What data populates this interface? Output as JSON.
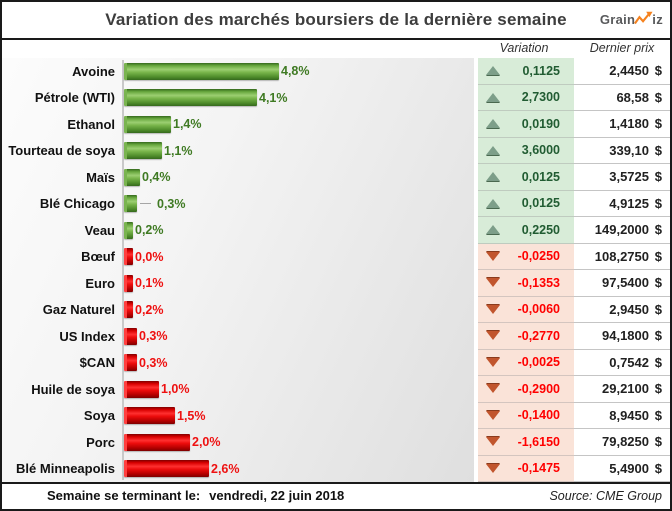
{
  "title": "Variation des marchés boursiers de la dernière semaine",
  "logo": {
    "part1": "Grain",
    "part2": "iz",
    "zigzag_color": "#f5821f",
    "text_color": "#58595b"
  },
  "columns": {
    "variation": "Variation",
    "dernier_prix": "Dernier prix",
    "currency": "$"
  },
  "footer": {
    "week_label": "Semaine se terminant le:",
    "week_date": "vendredi, 22 juin 2018",
    "source": "Source: CME Group"
  },
  "colors": {
    "positive_bar": "#5a9e35",
    "negative_bar": "#e00000",
    "positive_text": "#3f7a23",
    "negative_text": "#ee1111",
    "positive_cell_bg": "#d8ecd8",
    "negative_cell_bg": "#fae3d8",
    "up_icon": "#7d9e89",
    "down_icon": "#c1552d",
    "accent_orange": "#f5821f"
  },
  "chart_data": {
    "type": "bar",
    "orientation": "horizontal",
    "title": "Variation des marchés boursiers de la dernière semaine",
    "xlabel": "",
    "ylabel": "",
    "value_unit": "percent",
    "x_range_pct": [
      0,
      5
    ],
    "grid": false,
    "legend": false,
    "categories": [
      "Avoine",
      "Pétrole (WTI)",
      "Ethanol",
      "Tourteau de soya",
      "Maïs",
      "Blé Chicago",
      "Veau",
      "Bœuf",
      "Euro",
      "Gaz Naturel",
      "US Index",
      "$CAN",
      "Huile de soya",
      "Soya",
      "Porc",
      "Blé Minneapolis"
    ],
    "rows": [
      {
        "label": "Avoine",
        "pct": 4.8,
        "pct_label": "4,8%",
        "direction": "up",
        "variation": "0,1125",
        "price": "2,4450"
      },
      {
        "label": "Pétrole (WTI)",
        "pct": 4.1,
        "pct_label": "4,1%",
        "direction": "up",
        "variation": "2,7300",
        "price": "68,58"
      },
      {
        "label": "Ethanol",
        "pct": 1.4,
        "pct_label": "1,4%",
        "direction": "up",
        "variation": "0,0190",
        "price": "1,4180"
      },
      {
        "label": "Tourteau de soya",
        "pct": 1.1,
        "pct_label": "1,1%",
        "direction": "up",
        "variation": "3,6000",
        "price": "339,10"
      },
      {
        "label": "Maïs",
        "pct": 0.4,
        "pct_label": "0,4%",
        "direction": "up",
        "variation": "0,0125",
        "price": "3,5725"
      },
      {
        "label": "Blé Chicago",
        "pct": 0.3,
        "pct_label": "0,3%",
        "direction": "up",
        "variation": "0,0125",
        "price": "4,9125",
        "leader": true
      },
      {
        "label": "Veau",
        "pct": 0.2,
        "pct_label": "0,2%",
        "direction": "up",
        "variation": "0,2250",
        "price": "149,2000"
      },
      {
        "label": "Bœuf",
        "pct": 0.0,
        "pct_label": "0,0%",
        "direction": "down",
        "variation": "-0,0250",
        "price": "108,2750"
      },
      {
        "label": "Euro",
        "pct": 0.1,
        "pct_label": "0,1%",
        "direction": "down",
        "variation": "-0,1353",
        "price": "97,5400"
      },
      {
        "label": "Gaz Naturel",
        "pct": 0.2,
        "pct_label": "0,2%",
        "direction": "down",
        "variation": "-0,0060",
        "price": "2,9450"
      },
      {
        "label": "US Index",
        "pct": 0.3,
        "pct_label": "0,3%",
        "direction": "down",
        "variation": "-0,2770",
        "price": "94,1800"
      },
      {
        "label": "$CAN",
        "pct": 0.3,
        "pct_label": "0,3%",
        "direction": "down",
        "variation": "-0,0025",
        "price": "0,7542"
      },
      {
        "label": "Huile de soya",
        "pct": 1.0,
        "pct_label": "1,0%",
        "direction": "down",
        "variation": "-0,2900",
        "price": "29,2100"
      },
      {
        "label": "Soya",
        "pct": 1.5,
        "pct_label": "1,5%",
        "direction": "down",
        "variation": "-0,1400",
        "price": "8,9450"
      },
      {
        "label": "Porc",
        "pct": 2.0,
        "pct_label": "2,0%",
        "direction": "down",
        "variation": "-1,6150",
        "price": "79,8250"
      },
      {
        "label": "Blé Minneapolis",
        "pct": 2.6,
        "pct_label": "2,6%",
        "direction": "down",
        "variation": "-0,1475",
        "price": "5,4900"
      }
    ]
  }
}
